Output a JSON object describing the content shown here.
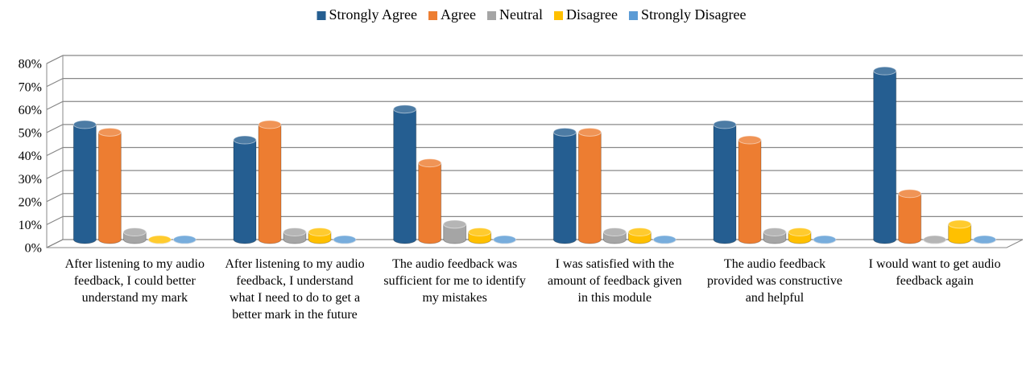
{
  "chart_data": {
    "type": "bar3d",
    "categories": [
      "After listening to my audio feedback, I could better understand my mark",
      "After listening to my audio feedback, I understand what I need to do to get a better mark in the future",
      "The audio feedback was sufficient for me to identify my mistakes",
      "I was satisfied with the amount of feedback given in this module",
      "The audio feedback provided was constructive and helpful",
      "I would want to get audio feedback again"
    ],
    "series": [
      {
        "name": "Strongly Agree",
        "color": "#255e91",
        "values": [
          50,
          43.3,
          56.7,
          46.7,
          50,
          73.3
        ]
      },
      {
        "name": "Agree",
        "color": "#ed7d31",
        "values": [
          46.7,
          50,
          33.3,
          46.7,
          43.3,
          20
        ]
      },
      {
        "name": "Neutral",
        "color": "#a5a5a5",
        "values": [
          3.3,
          3.3,
          6.7,
          3.3,
          3.3,
          0
        ]
      },
      {
        "name": "Disagree",
        "color": "#ffc000",
        "values": [
          0,
          3.3,
          3.3,
          3.3,
          3.3,
          6.7
        ]
      },
      {
        "name": "Strongly Disagree",
        "color": "#5b9bd5",
        "values": [
          0,
          0,
          0,
          0,
          0,
          0
        ]
      }
    ],
    "ylim": [
      0,
      80
    ],
    "yticks": [
      {
        "value": 0,
        "label": "0%"
      },
      {
        "value": 10,
        "label": "10%"
      },
      {
        "value": 20,
        "label": "20%"
      },
      {
        "value": 30,
        "label": "30%"
      },
      {
        "value": 40,
        "label": "40%"
      },
      {
        "value": 50,
        "label": "50%"
      },
      {
        "value": 60,
        "label": "60%"
      },
      {
        "value": 70,
        "label": "70%"
      },
      {
        "value": 80,
        "label": "80%"
      }
    ],
    "grid": true,
    "legend": "top"
  }
}
